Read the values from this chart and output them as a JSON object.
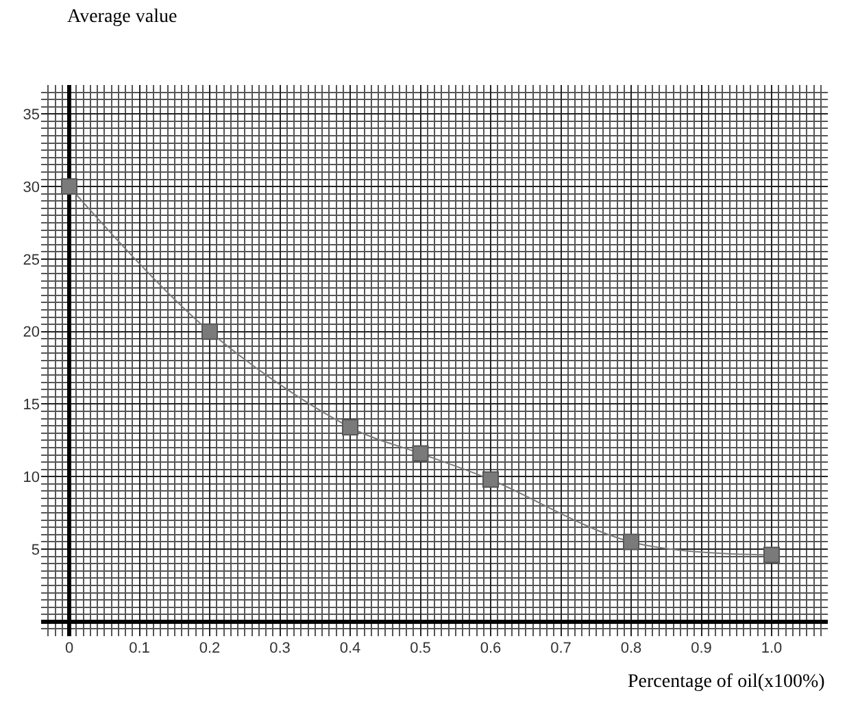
{
  "chart_data": {
    "type": "line",
    "xlabel": "Percentage of oil(x100%)",
    "ylabel": "Average value",
    "x": [
      0,
      0.2,
      0.4,
      0.5,
      0.6,
      0.8,
      1.0
    ],
    "series": [
      {
        "color": "#7a7a7a",
        "values": [
          30,
          20,
          13.4,
          11.6,
          9.8,
          5.5,
          4.6
        ]
      }
    ],
    "marker": "square",
    "line_style": "solid",
    "grid": true,
    "xlim": [
      -0.04,
      1.08
    ],
    "ylim": [
      -1,
      37
    ],
    "xticks": [
      0,
      0.1,
      0.2,
      0.3,
      0.4,
      0.5,
      0.6,
      0.7,
      0.8,
      0.9,
      {
        "value": 1,
        "label": "1.0"
      }
    ],
    "yticks": [
      5,
      10,
      15,
      20,
      25,
      30,
      35
    ]
  }
}
